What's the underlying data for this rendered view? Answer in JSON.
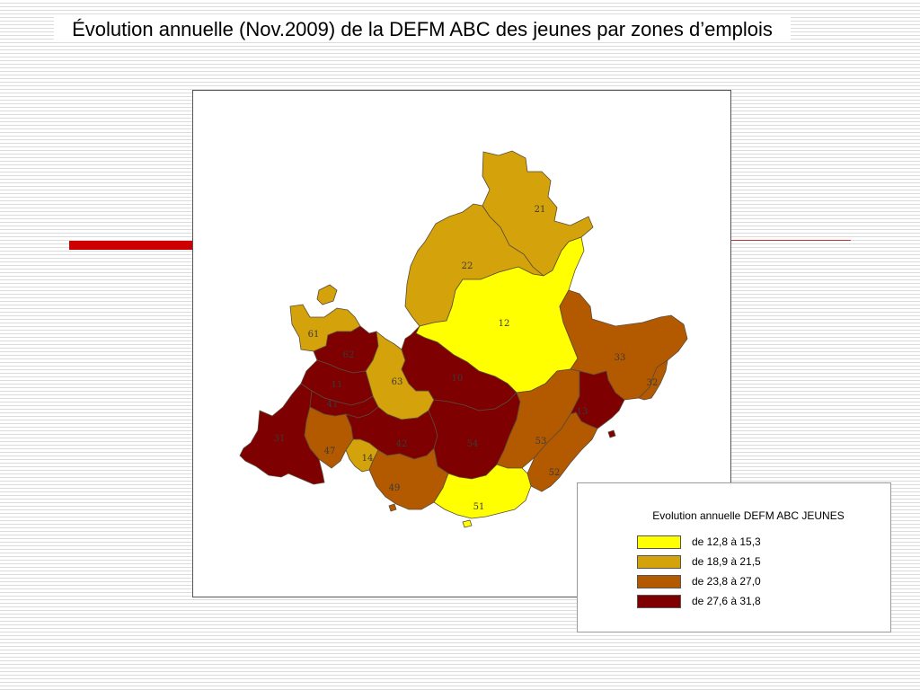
{
  "title": "Évolution annuelle (Nov.2009) de la DEFM ABC des jeunes par zones d’emplois",
  "legend": {
    "title": "Evolution annuelle DEFM ABC JEUNES",
    "classes": [
      {
        "label": "de 12,8 à 15,3",
        "color": "#ffff00"
      },
      {
        "label": "de 18,9 à 21,5",
        "color": "#d4a20a"
      },
      {
        "label": "de 23,8 à 27,0",
        "color": "#b35a00"
      },
      {
        "label": "de 27,6 à 31,8",
        "color": "#7f0000"
      }
    ]
  },
  "zones": [
    {
      "id": "21",
      "class": 1
    },
    {
      "id": "22",
      "class": 1
    },
    {
      "id": "12",
      "class": 0
    },
    {
      "id": "33",
      "class": 2
    },
    {
      "id": "32",
      "class": 2
    },
    {
      "id": "61",
      "class": 1
    },
    {
      "id": "62",
      "class": 3
    },
    {
      "id": "63",
      "class": 1
    },
    {
      "id": "10",
      "class": 3
    },
    {
      "id": "11",
      "class": 3
    },
    {
      "id": "31",
      "class": 3
    },
    {
      "id": "41",
      "class": 3
    },
    {
      "id": "47",
      "class": 2
    },
    {
      "id": "42",
      "class": 3
    },
    {
      "id": "54",
      "class": 3
    },
    {
      "id": "53",
      "class": 2
    },
    {
      "id": "52",
      "class": 2
    },
    {
      "id": "49",
      "class": 2
    },
    {
      "id": "51",
      "class": 0
    },
    {
      "id": "13",
      "class": 3
    },
    {
      "id": "14",
      "class": 1
    }
  ]
}
